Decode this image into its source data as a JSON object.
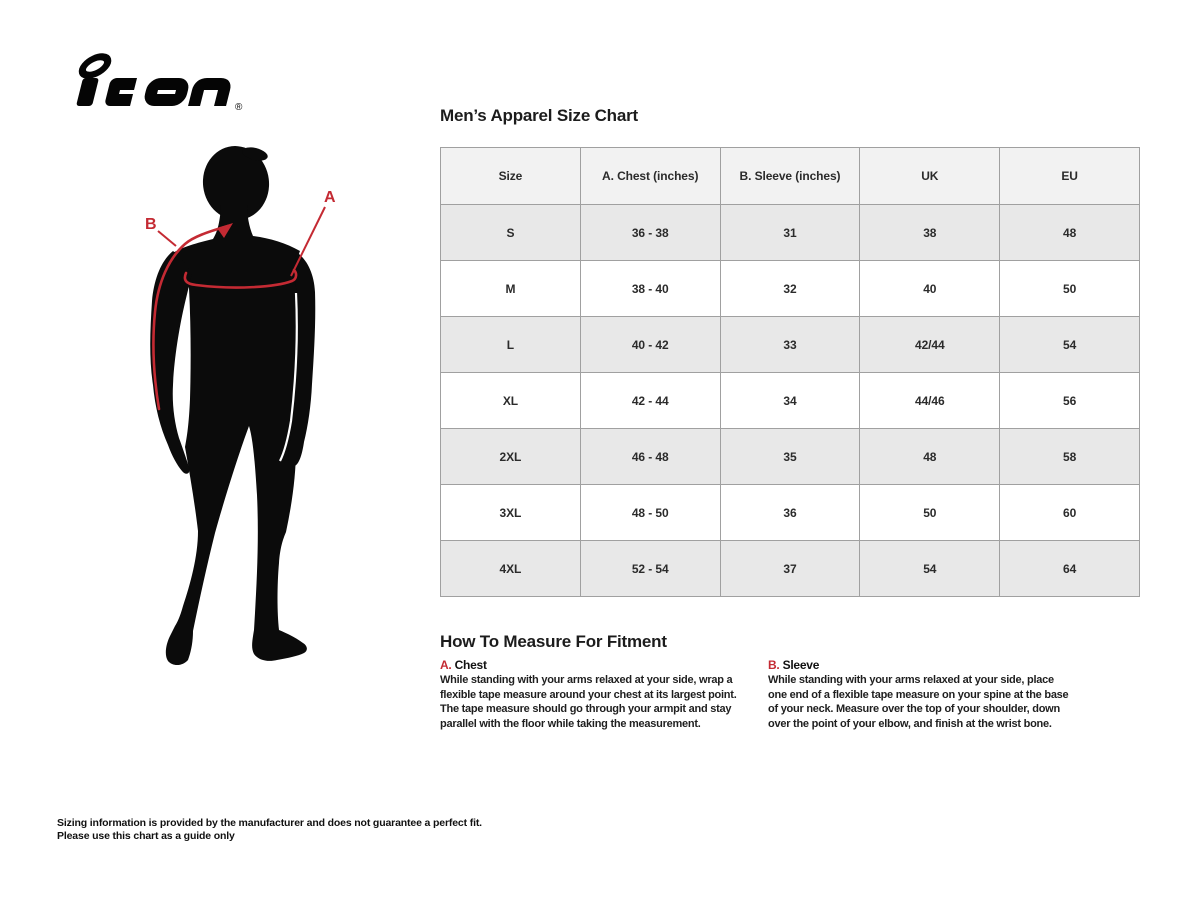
{
  "logo": {
    "brand": "icon",
    "registered_mark": "®"
  },
  "size_chart": {
    "title": "Men’s Apparel Size Chart",
    "table": {
      "headers": [
        "Size",
        "A. Chest (inches)",
        "B. Sleeve (inches)",
        "UK",
        "EU"
      ],
      "rows": [
        [
          "S",
          "36 - 38",
          "31",
          "38",
          "48"
        ],
        [
          "M",
          "38 - 40",
          "32",
          "40",
          "50"
        ],
        [
          "L",
          "40 - 42",
          "33",
          "42/44",
          "54"
        ],
        [
          "XL",
          "42 - 44",
          "34",
          "44/46",
          "56"
        ],
        [
          "2XL",
          "46 - 48",
          "35",
          "48",
          "58"
        ],
        [
          "3XL",
          "48 - 50",
          "36",
          "50",
          "60"
        ],
        [
          "4XL",
          "52 - 54",
          "37",
          "54",
          "64"
        ]
      ]
    }
  },
  "chart_data": {
    "type": "table",
    "title": "Men’s Apparel Size Chart",
    "columns": [
      "Size",
      "A. Chest (inches)",
      "B. Sleeve (inches)",
      "UK",
      "EU"
    ],
    "rows": [
      [
        "S",
        "36 - 38",
        "31",
        "38",
        "48"
      ],
      [
        "M",
        "38 - 40",
        "32",
        "40",
        "50"
      ],
      [
        "L",
        "40 - 42",
        "33",
        "42/44",
        "54"
      ],
      [
        "XL",
        "42 - 44",
        "34",
        "44/46",
        "56"
      ],
      [
        "2XL",
        "46 - 48",
        "35",
        "48",
        "58"
      ],
      [
        "3XL",
        "48 - 50",
        "36",
        "50",
        "60"
      ],
      [
        "4XL",
        "52 - 54",
        "37",
        "54",
        "64"
      ]
    ]
  },
  "figure": {
    "label_a": "A",
    "label_b": "B"
  },
  "how_to_measure": {
    "title": "How To Measure For Fitment",
    "sections": [
      {
        "key": "A.",
        "name": "Chest",
        "text": "While standing with your arms relaxed at your side, wrap a flexible tape measure around your chest at its largest point. The tape measure should go through your armpit and stay parallel with the floor while taking the measurement."
      },
      {
        "key": "B.",
        "name": "Sleeve",
        "text": "While standing with your arms relaxed at your side, place one end of a flexible tape measure on your spine at the base of your neck. Measure over the top of your shoulder, down over the point of your elbow, and finish at the wrist bone."
      }
    ]
  },
  "disclaimer": {
    "line1": "Sizing information is provided by the manufacturer and does not guarantee a perfect fit.",
    "line2": "Please use this chart as a guide only"
  },
  "colors": {
    "red_accent": "#c42a33",
    "silhouette": "#0b0b0b",
    "table_header_bg": "#f2f2f2",
    "table_stripe_bg": "#e8e8e8",
    "table_border": "#a0a0a0"
  }
}
